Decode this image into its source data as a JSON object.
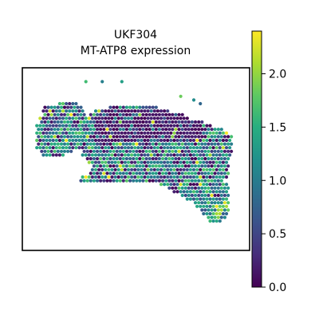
{
  "chart_data": {
    "type": "scatter",
    "title": "UKF304",
    "subtitle": "MT-ATP8 expression",
    "xlabel": "",
    "ylabel": "",
    "grid": false,
    "legend": "none",
    "colorbar": {
      "colormap": "viridis",
      "range": [
        0.0,
        2.4
      ],
      "ticks": [
        0.0,
        0.5,
        1.0,
        1.5,
        2.0
      ],
      "tick_labels": [
        "0.0",
        "0.5",
        "1.0",
        "1.5",
        "2.0"
      ],
      "placement": "right"
    },
    "spots": {
      "grid_columns": 64,
      "grid_rows": 50,
      "value_range": [
        0.0,
        2.4
      ],
      "region_by_row": [
        [
          10,
          9,
          14
        ],
        [
          11,
          4,
          15
        ],
        [
          12,
          4,
          16
        ],
        [
          13,
          4,
          16
        ],
        [
          14,
          3,
          16
        ],
        [
          15,
          3,
          16
        ],
        [
          16,
          2,
          16
        ],
        [
          17,
          2,
          16
        ],
        [
          18,
          2,
          16
        ],
        [
          19,
          2,
          16
        ],
        [
          20,
          2,
          16
        ],
        [
          21,
          2,
          16
        ],
        [
          22,
          2,
          15
        ],
        [
          23,
          3,
          12
        ],
        [
          24,
          4,
          10
        ],
        [
          11,
          24,
          38
        ],
        [
          12,
          20,
          42
        ],
        [
          13,
          18,
          46
        ],
        [
          14,
          16,
          48
        ],
        [
          15,
          16,
          52
        ],
        [
          16,
          16,
          55
        ],
        [
          17,
          16,
          58
        ],
        [
          18,
          16,
          60
        ],
        [
          19,
          16,
          61
        ],
        [
          20,
          16,
          61
        ],
        [
          21,
          16,
          61
        ],
        [
          22,
          16,
          61
        ],
        [
          23,
          16,
          61
        ],
        [
          24,
          16,
          61
        ],
        [
          25,
          17,
          60
        ],
        [
          26,
          18,
          60
        ],
        [
          27,
          19,
          60
        ],
        [
          28,
          19,
          60
        ],
        [
          29,
          18,
          60
        ],
        [
          30,
          16,
          60
        ],
        [
          31,
          15,
          58
        ],
        [
          32,
          40,
          60
        ],
        [
          33,
          42,
          60
        ],
        [
          34,
          44,
          60
        ],
        [
          35,
          46,
          60
        ],
        [
          36,
          48,
          60
        ],
        [
          37,
          50,
          60
        ],
        [
          38,
          51,
          60
        ],
        [
          39,
          52,
          60
        ],
        [
          40,
          53,
          60
        ],
        [
          41,
          54,
          59
        ],
        [
          42,
          55,
          58
        ]
      ],
      "low_band_rows": [
        12,
        20
      ],
      "seed": 304
    }
  }
}
